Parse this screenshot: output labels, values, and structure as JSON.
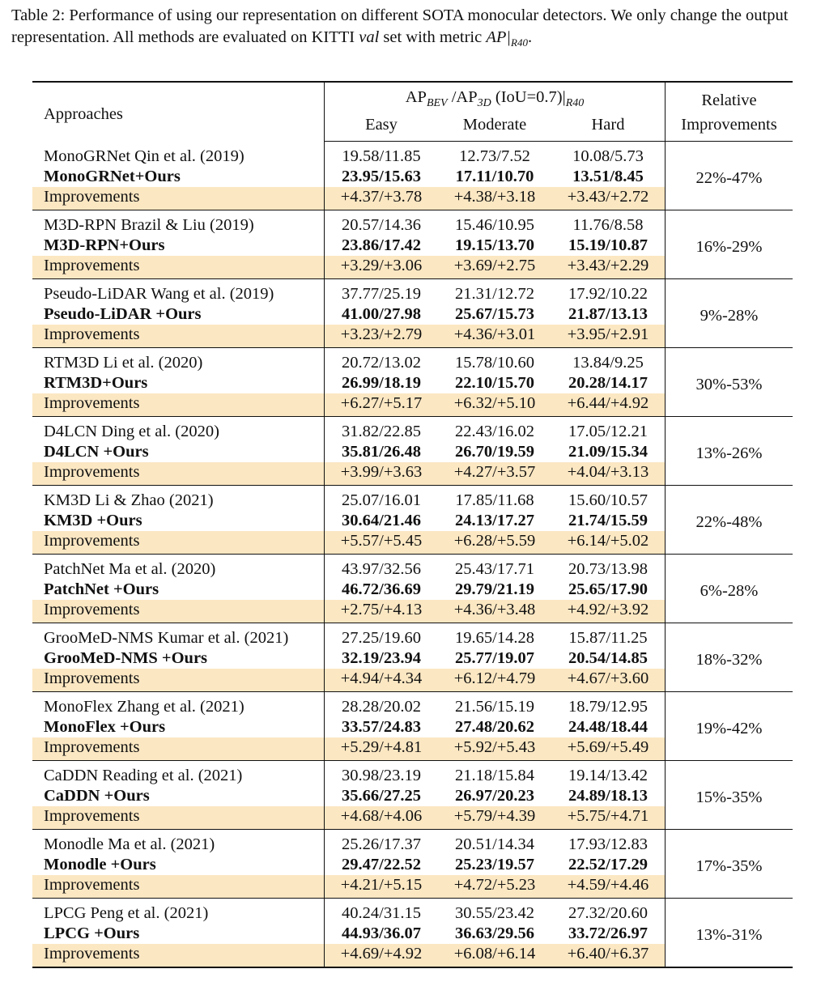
{
  "caption": {
    "part1": "Table 2: Performance of using our representation on different SOTA monocular detectors. We only change the output representation. All methods are evaluated on KITTI ",
    "val": "val",
    "part2": " set with metric ",
    "metric": "AP|",
    "metric_sub": "R40",
    "end": "."
  },
  "header": {
    "approaches": "Approaches",
    "ap_prefix": "AP",
    "ap_bev_sub": "BEV",
    "ap_mid": " /AP",
    "ap_3d_sub": "3D",
    "ap_suffix": " (IoU=0.7)|",
    "ap_r40_sub": "R40",
    "easy": "Easy",
    "moderate": "Moderate",
    "hard": "Hard",
    "relative_1": "Relative",
    "relative_2": "Improvements"
  },
  "groups": [
    {
      "base": {
        "name": "MonoGRNet Qin et al. (2019)",
        "easy": "19.58/11.85",
        "mod": "12.73/7.52",
        "hard": "10.08/5.73"
      },
      "ours": {
        "name": "MonoGRNet+Ours",
        "easy": "23.95/15.63",
        "mod": "17.11/10.70",
        "hard": "13.51/8.45"
      },
      "imp": {
        "name": "Improvements",
        "easy": "+4.37/+3.78",
        "mod": "+4.38/+3.18",
        "hard": "+3.43/+2.72"
      },
      "relative": "22%-47%"
    },
    {
      "base": {
        "name": "M3D-RPN Brazil & Liu (2019)",
        "easy": "20.57/14.36",
        "mod": "15.46/10.95",
        "hard": "11.76/8.58"
      },
      "ours": {
        "name": "M3D-RPN+Ours",
        "easy": "23.86/17.42",
        "mod": "19.15/13.70",
        "hard": "15.19/10.87"
      },
      "imp": {
        "name": "Improvements",
        "easy": "+3.29/+3.06",
        "mod": "+3.69/+2.75",
        "hard": "+3.43/+2.29"
      },
      "relative": "16%-29%"
    },
    {
      "base": {
        "name": "Pseudo-LiDAR Wang et al. (2019)",
        "easy": "37.77/25.19",
        "mod": "21.31/12.72",
        "hard": "17.92/10.22"
      },
      "ours": {
        "name": "Pseudo-LiDAR +Ours",
        "easy": "41.00/27.98",
        "mod": "25.67/15.73",
        "hard": "21.87/13.13"
      },
      "imp": {
        "name": "Improvements",
        "easy": "+3.23/+2.79",
        "mod": "+4.36/+3.01",
        "hard": "+3.95/+2.91"
      },
      "relative": "9%-28%"
    },
    {
      "base": {
        "name": "RTM3D Li et al. (2020)",
        "easy": "20.72/13.02",
        "mod": "15.78/10.60",
        "hard": "13.84/9.25"
      },
      "ours": {
        "name": "RTM3D+Ours",
        "easy": "26.99/18.19",
        "mod": "22.10/15.70",
        "hard": "20.28/14.17"
      },
      "imp": {
        "name": "Improvements",
        "easy": "+6.27/+5.17",
        "mod": "+6.32/+5.10",
        "hard": "+6.44/+4.92"
      },
      "relative": "30%-53%"
    },
    {
      "base": {
        "name": "D4LCN Ding et al. (2020)",
        "easy": "31.82/22.85",
        "mod": "22.43/16.02",
        "hard": "17.05/12.21"
      },
      "ours": {
        "name": "D4LCN +Ours",
        "easy": "35.81/26.48",
        "mod": "26.70/19.59",
        "hard": "21.09/15.34"
      },
      "imp": {
        "name": "Improvements",
        "easy": "+3.99/+3.63",
        "mod": "+4.27/+3.57",
        "hard": "+4.04/+3.13"
      },
      "relative": "13%-26%"
    },
    {
      "base": {
        "name": "KM3D Li & Zhao (2021)",
        "easy": "25.07/16.01",
        "mod": "17.85/11.68",
        "hard": "15.60/10.57"
      },
      "ours": {
        "name": "KM3D +Ours",
        "easy": "30.64/21.46",
        "mod": "24.13/17.27",
        "hard": "21.74/15.59"
      },
      "imp": {
        "name": "Improvements",
        "easy": "+5.57/+5.45",
        "mod": "+6.28/+5.59",
        "hard": "+6.14/+5.02"
      },
      "relative": "22%-48%"
    },
    {
      "base": {
        "name": "PatchNet Ma et al. (2020)",
        "easy": "43.97/32.56",
        "mod": "25.43/17.71",
        "hard": "20.73/13.98"
      },
      "ours": {
        "name": "PatchNet +Ours",
        "easy": "46.72/36.69",
        "mod": "29.79/21.19",
        "hard": "25.65/17.90"
      },
      "imp": {
        "name": "Improvements",
        "easy": "+2.75/+4.13",
        "mod": "+4.36/+3.48",
        "hard": "+4.92/+3.92"
      },
      "relative": "6%-28%"
    },
    {
      "base": {
        "name": "GrooMeD-NMS Kumar et al. (2021)",
        "easy": "27.25/19.60",
        "mod": "19.65/14.28",
        "hard": "15.87/11.25"
      },
      "ours": {
        "name": "GrooMeD-NMS +Ours",
        "easy": "32.19/23.94",
        "mod": "25.77/19.07",
        "hard": "20.54/14.85"
      },
      "imp": {
        "name": "Improvements",
        "easy": "+4.94/+4.34",
        "mod": "+6.12/+4.79",
        "hard": "+4.67/+3.60"
      },
      "relative": "18%-32%"
    },
    {
      "base": {
        "name": "MonoFlex Zhang et al. (2021)",
        "easy": "28.28/20.02",
        "mod": "21.56/15.19",
        "hard": "18.79/12.95"
      },
      "ours": {
        "name": "MonoFlex +Ours",
        "easy": "33.57/24.83",
        "mod": "27.48/20.62",
        "hard": "24.48/18.44"
      },
      "imp": {
        "name": "Improvements",
        "easy": "+5.29/+4.81",
        "mod": "+5.92/+5.43",
        "hard": "+5.69/+5.49"
      },
      "relative": "19%-42%"
    },
    {
      "base": {
        "name": "CaDDN Reading et al. (2021)",
        "easy": "30.98/23.19",
        "mod": "21.18/15.84",
        "hard": "19.14/13.42"
      },
      "ours": {
        "name": "CaDDN +Ours",
        "easy": "35.66/27.25",
        "mod": "26.97/20.23",
        "hard": "24.89/18.13"
      },
      "imp": {
        "name": "Improvements",
        "easy": "+4.68/+4.06",
        "mod": "+5.79/+4.39",
        "hard": "+5.75/+4.71"
      },
      "relative": "15%-35%"
    },
    {
      "base": {
        "name": "Monodle Ma et al. (2021)",
        "easy": "25.26/17.37",
        "mod": "20.51/14.34",
        "hard": "17.93/12.83"
      },
      "ours": {
        "name": "Monodle +Ours",
        "easy": "29.47/22.52",
        "mod": "25.23/19.57",
        "hard": "22.52/17.29"
      },
      "imp": {
        "name": "Improvements",
        "easy": "+4.21/+5.15",
        "mod": "+4.72/+5.23",
        "hard": "+4.59/+4.46"
      },
      "relative": "17%-35%"
    },
    {
      "base": {
        "name": "LPCG Peng et al. (2021)",
        "easy": "40.24/31.15",
        "mod": "30.55/23.42",
        "hard": "27.32/20.60"
      },
      "ours": {
        "name": "LPCG +Ours",
        "easy": "44.93/36.07",
        "mod": "36.63/29.56",
        "hard": "33.72/26.97"
      },
      "imp": {
        "name": "Improvements",
        "easy": "+4.69/+4.92",
        "mod": "+6.08/+6.14",
        "hard": "+6.40/+6.37"
      },
      "relative": "13%-31%"
    }
  ]
}
